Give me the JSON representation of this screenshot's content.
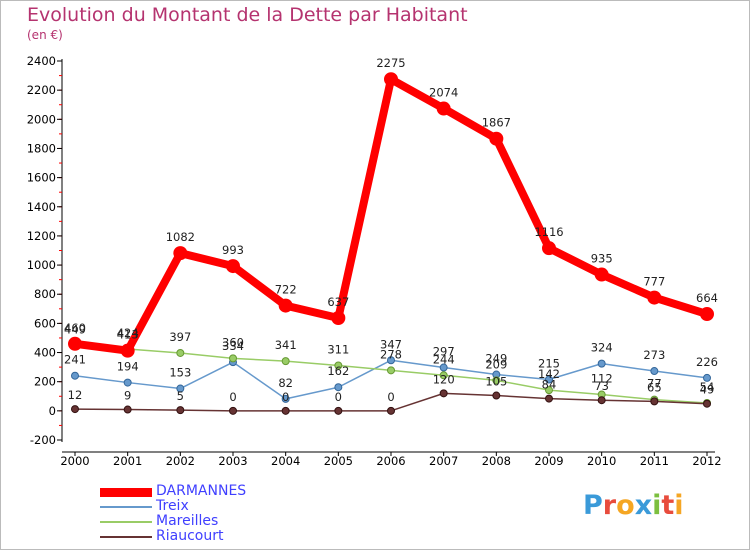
{
  "header": {
    "title": "Evolution du Montant de la Dette par Habitant",
    "subtitle": "(en €)"
  },
  "logo": {
    "letters": [
      "P",
      "r",
      "o",
      "x",
      "i",
      "t",
      "i"
    ],
    "colors": [
      "#3a9ad9",
      "#e84c3d",
      "#f5a623",
      "#3a9ad9",
      "#7cbf3f",
      "#e84c3d",
      "#f5a623"
    ]
  },
  "chart_data": {
    "type": "line",
    "x": [
      "2000",
      "2001",
      "2002",
      "2003",
      "2004",
      "2005",
      "2006",
      "2007",
      "2008",
      "2009",
      "2010",
      "2011",
      "2012"
    ],
    "ylim": [
      -200,
      2400
    ],
    "yticks": [
      "-200",
      "0",
      "200",
      "400",
      "600",
      "800",
      "1000",
      "1200",
      "1400",
      "1600",
      "1800",
      "2000",
      "2200",
      "2400"
    ],
    "grid": false,
    "legend_position": "bottom-left",
    "series": [
      {
        "name": "DARMANNES",
        "color": "#ff0000",
        "values": [
          460,
          413,
          1082,
          993,
          722,
          637,
          2275,
          2074,
          1867,
          1116,
          935,
          777,
          664
        ],
        "labels": [
          "460",
          "413",
          "1082",
          "993",
          "722",
          "637",
          "2275",
          "2074",
          "1867",
          "1116",
          "935",
          "777",
          "664"
        ]
      },
      {
        "name": "Treix",
        "color": "#6699cc",
        "values": [
          241,
          194,
          153,
          334,
          82,
          162,
          347,
          297,
          249,
          215,
          324,
          273,
          226
        ],
        "labels": [
          "241",
          "194",
          "153",
          "334",
          "82",
          "162",
          "347",
          "297",
          "249",
          "215",
          "324",
          "273",
          "226"
        ]
      },
      {
        "name": "Mareilles",
        "color": "#99cc66",
        "values": [
          449,
          424,
          397,
          360,
          341,
          311,
          278,
          244,
          209,
          142,
          112,
          77,
          54
        ],
        "labels": [
          "449",
          "424",
          "397",
          "360",
          "341",
          "311",
          "278",
          "244",
          "209",
          "142",
          "112",
          "77",
          "54"
        ]
      },
      {
        "name": "Riaucourt",
        "color": "#663333",
        "values": [
          12,
          9,
          5,
          0,
          0,
          0,
          0,
          120,
          105,
          84,
          73,
          65,
          49
        ],
        "labels": [
          "12",
          "9",
          "5",
          "0",
          "0",
          "0",
          "0",
          "120",
          "105",
          "84",
          "73",
          "65",
          "49"
        ]
      }
    ]
  }
}
